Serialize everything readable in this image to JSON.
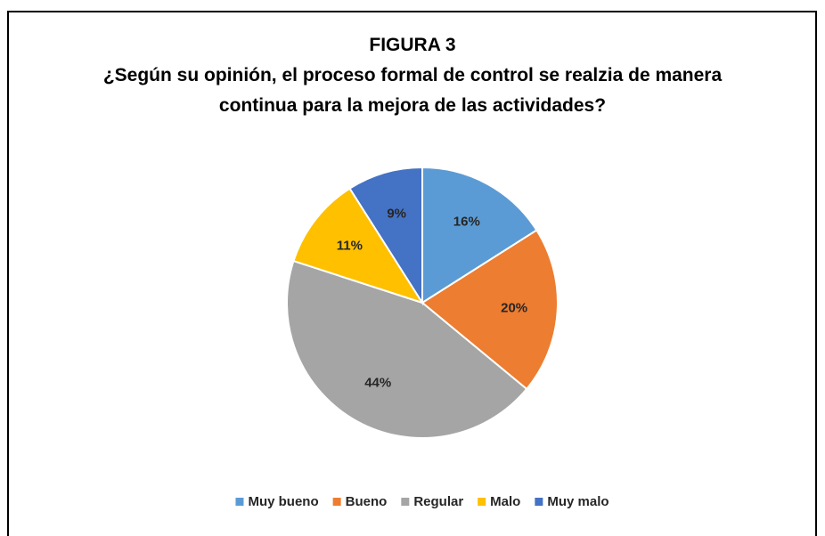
{
  "chart_data": {
    "type": "pie",
    "title": "FIGURA 3",
    "subtitle": "¿Según su opinión,  el proceso formal de control se realzia de manera continua para la mejora de las actividades?",
    "categories": [
      "Muy bueno",
      "Bueno",
      "Regular",
      "Malo",
      "Muy malo"
    ],
    "values": [
      16,
      20,
      44,
      11,
      9
    ],
    "value_labels": [
      "16%",
      "20%",
      "44%",
      "11%",
      "9%"
    ],
    "colors": [
      "#5b9bd5",
      "#ed7d31",
      "#a5a5a5",
      "#ffc000",
      "#4472c4"
    ],
    "legend": "bottom"
  }
}
